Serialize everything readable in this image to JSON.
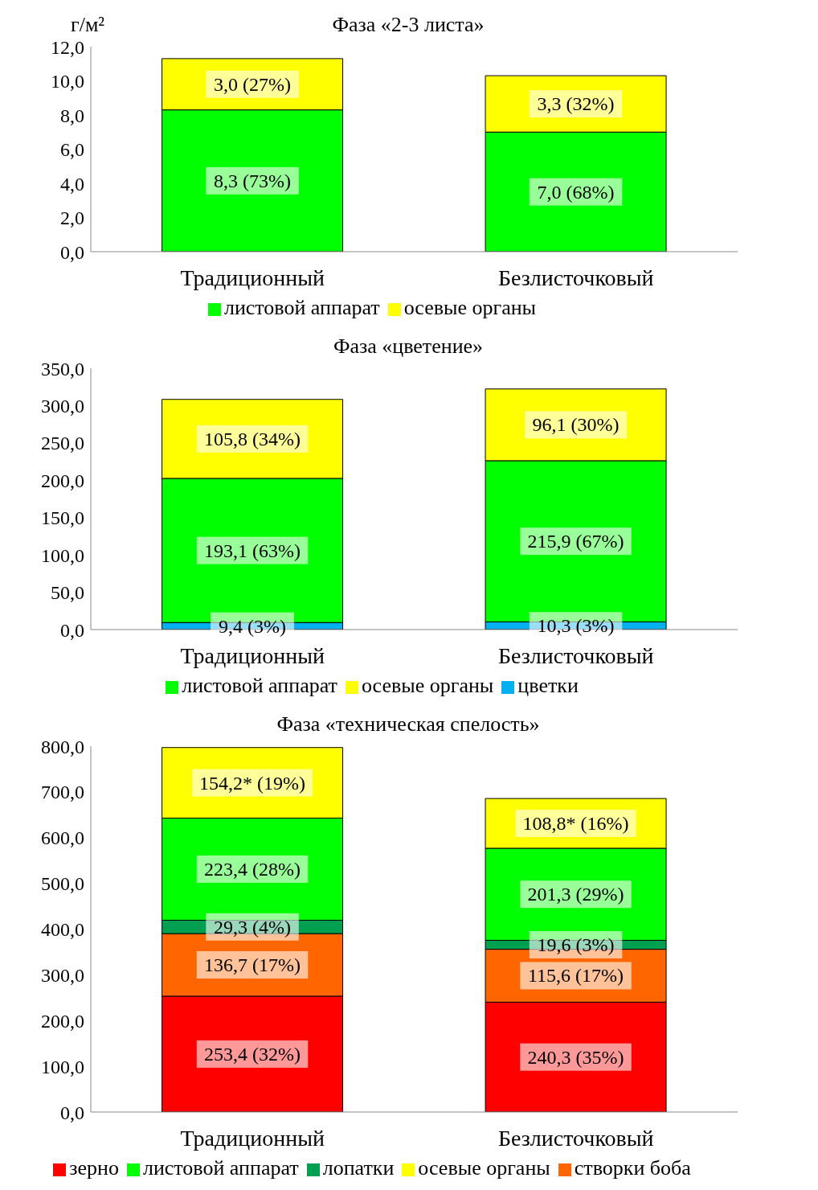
{
  "chart_data": [
    {
      "type": "bar",
      "title": "Фаза «2-3 листа»",
      "ylabel": "г/м²",
      "stacked": true,
      "legend": "bottom",
      "categories": [
        "Традиционный",
        "Безлисточковый"
      ],
      "ylim": [
        0,
        12
      ],
      "yticks": [
        {
          "value": 0,
          "label": "0,0"
        },
        {
          "value": 2,
          "label": "2,0"
        },
        {
          "value": 4,
          "label": "4,0"
        },
        {
          "value": 6,
          "label": "6,0"
        },
        {
          "value": 8,
          "label": "8,0"
        },
        {
          "value": 10,
          "label": "10,0"
        },
        {
          "value": 12,
          "label": "12,0"
        }
      ],
      "series": [
        {
          "name": "листовой аппарат",
          "color": "#00ff00",
          "values": [
            8.3,
            7.0
          ],
          "value_labels": [
            "8,3 (73%)",
            "7,0 (68%)"
          ]
        },
        {
          "name": "осевые органы",
          "color": "#ffff00",
          "values": [
            3.0,
            3.3
          ],
          "value_labels": [
            "3,0 (27%)",
            "3,3 (32%)"
          ]
        }
      ]
    },
    {
      "type": "bar",
      "title": "Фаза «цветение»",
      "stacked": true,
      "legend": "bottom",
      "categories": [
        "Традиционный",
        "Безлисточковый"
      ],
      "ylim": [
        0,
        350
      ],
      "yticks": [
        {
          "value": 0,
          "label": "0,0"
        },
        {
          "value": 50,
          "label": "50,0"
        },
        {
          "value": 100,
          "label": "100,0"
        },
        {
          "value": 150,
          "label": "150,0"
        },
        {
          "value": 200,
          "label": "200,0"
        },
        {
          "value": 250,
          "label": "250,0"
        },
        {
          "value": 300,
          "label": "300,0"
        },
        {
          "value": 350,
          "label": "350,0"
        }
      ],
      "series": [
        {
          "name": "цветки",
          "color": "#00b0f0",
          "values": [
            9.4,
            10.3
          ],
          "value_labels": [
            "9,4 (3%)",
            "10,3 (3%)"
          ]
        },
        {
          "name": "листовой аппарат",
          "color": "#00ff00",
          "values": [
            193.1,
            215.9
          ],
          "value_labels": [
            "193,1 (63%)",
            "215,9 (67%)"
          ]
        },
        {
          "name": "осевые органы",
          "color": "#ffff00",
          "values": [
            105.8,
            96.1
          ],
          "value_labels": [
            "105,8 (34%)",
            "96,1 (30%)"
          ]
        }
      ]
    },
    {
      "type": "bar",
      "title": "Фаза  «техническая спелость»",
      "stacked": true,
      "legend": "bottom",
      "categories": [
        "Традиционный",
        "Безлисточковый"
      ],
      "ylim": [
        0,
        800
      ],
      "yticks": [
        {
          "value": 0,
          "label": "0,0"
        },
        {
          "value": 100,
          "label": "100,0"
        },
        {
          "value": 200,
          "label": "200,0"
        },
        {
          "value": 300,
          "label": "300,0"
        },
        {
          "value": 400,
          "label": "400,0"
        },
        {
          "value": 500,
          "label": "500,0"
        },
        {
          "value": 600,
          "label": "600,0"
        },
        {
          "value": 700,
          "label": "700,0"
        },
        {
          "value": 800,
          "label": "800,0"
        }
      ],
      "series": [
        {
          "name": "зерно",
          "color": "#ff0000",
          "values": [
            253.4,
            240.3
          ],
          "value_labels": [
            "253,4 (32%)",
            "240,3 (35%)"
          ]
        },
        {
          "name": "створки боба",
          "color": "#ff6600",
          "values": [
            136.7,
            115.6
          ],
          "value_labels": [
            "136,7 (17%)",
            "115,6 (17%)"
          ]
        },
        {
          "name": "лопатки",
          "color": "#00a050",
          "values": [
            29.3,
            19.6
          ],
          "value_labels": [
            "29,3 (4%)",
            "19,6 (3%)"
          ]
        },
        {
          "name": "листовой аппарат",
          "color": "#00ff00",
          "values": [
            223.4,
            201.3
          ],
          "value_labels": [
            "223,4 (28%)",
            "201,3 (29%)"
          ]
        },
        {
          "name": "осевые органы",
          "color": "#ffff00",
          "values": [
            154.2,
            108.8
          ],
          "value_labels": [
            "154,2* (19%)",
            "108,8* (16%)"
          ]
        }
      ]
    }
  ]
}
